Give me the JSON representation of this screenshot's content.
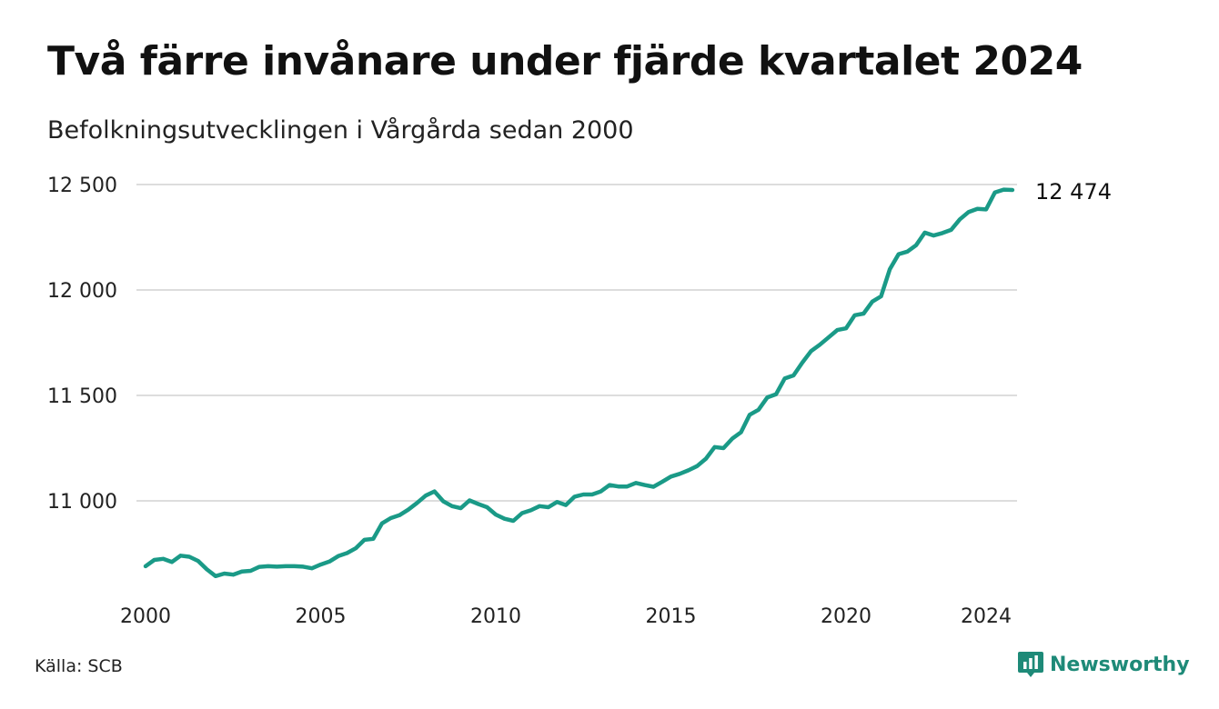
{
  "header": {
    "title": "Två färre invånare under fjärde kvartalet 2024",
    "subtitle": "Befolkningsutvecklingen i Vårgårda sedan 2000"
  },
  "footer": {
    "source": "Källa: SCB",
    "brand": "Newsworthy"
  },
  "colors": {
    "line": "#1a9a87",
    "brand": "#1e8a78",
    "grid": "#dddddd"
  },
  "chart_data": {
    "type": "line",
    "title": "Två färre invånare under fjärde kvartalet 2024",
    "subtitle": "Befolkningsutvecklingen i Vårgårda sedan 2000",
    "xlabel": "",
    "ylabel": "",
    "x_ticks": [
      2000,
      2005,
      2010,
      2015,
      2020,
      2024
    ],
    "y_ticks": [
      11000,
      11500,
      12000,
      12500
    ],
    "y_tick_labels": [
      "11 000",
      "11 500",
      "12 000",
      "12 500"
    ],
    "xlim": [
      2000,
      2024.75
    ],
    "ylim": [
      10620,
      12520
    ],
    "grid": "horizontal",
    "end_label": "12 474",
    "series": [
      {
        "values": [
          [
            2000.0,
            10690
          ],
          [
            2000.25,
            10720
          ],
          [
            2000.5,
            10725
          ],
          [
            2000.75,
            10710
          ],
          [
            2001.0,
            10740
          ],
          [
            2001.25,
            10735
          ],
          [
            2001.5,
            10715
          ],
          [
            2001.75,
            10675
          ],
          [
            2002.0,
            10643
          ],
          [
            2002.25,
            10655
          ],
          [
            2002.5,
            10650
          ],
          [
            2002.75,
            10665
          ],
          [
            2003.0,
            10668
          ],
          [
            2003.25,
            10687
          ],
          [
            2003.5,
            10690
          ],
          [
            2003.75,
            10688
          ],
          [
            2004.0,
            10690
          ],
          [
            2004.25,
            10690
          ],
          [
            2004.5,
            10688
          ],
          [
            2004.75,
            10680
          ],
          [
            2005.0,
            10698
          ],
          [
            2005.25,
            10712
          ],
          [
            2005.5,
            10738
          ],
          [
            2005.75,
            10752
          ],
          [
            2006.0,
            10775
          ],
          [
            2006.25,
            10815
          ],
          [
            2006.5,
            10820
          ],
          [
            2006.75,
            10893
          ],
          [
            2007.0,
            10918
          ],
          [
            2007.25,
            10932
          ],
          [
            2007.5,
            10958
          ],
          [
            2007.75,
            10990
          ],
          [
            2008.0,
            11025
          ],
          [
            2008.25,
            11045
          ],
          [
            2008.5,
            10998
          ],
          [
            2008.75,
            10975
          ],
          [
            2009.0,
            10965
          ],
          [
            2009.25,
            11002
          ],
          [
            2009.5,
            10985
          ],
          [
            2009.75,
            10970
          ],
          [
            2010.0,
            10935
          ],
          [
            2010.25,
            10915
          ],
          [
            2010.5,
            10905
          ],
          [
            2010.75,
            10942
          ],
          [
            2011.0,
            10955
          ],
          [
            2011.25,
            10975
          ],
          [
            2011.5,
            10970
          ],
          [
            2011.75,
            10995
          ],
          [
            2012.0,
            10980
          ],
          [
            2012.25,
            11020
          ],
          [
            2012.5,
            11030
          ],
          [
            2012.75,
            11030
          ],
          [
            2013.0,
            11045
          ],
          [
            2013.25,
            11075
          ],
          [
            2013.5,
            11068
          ],
          [
            2013.75,
            11068
          ],
          [
            2014.0,
            11085
          ],
          [
            2014.25,
            11075
          ],
          [
            2014.5,
            11067
          ],
          [
            2014.75,
            11090
          ],
          [
            2015.0,
            11115
          ],
          [
            2015.25,
            11128
          ],
          [
            2015.5,
            11145
          ],
          [
            2015.75,
            11165
          ],
          [
            2016.0,
            11200
          ],
          [
            2016.25,
            11255
          ],
          [
            2016.5,
            11250
          ],
          [
            2016.75,
            11295
          ],
          [
            2017.0,
            11325
          ],
          [
            2017.25,
            11408
          ],
          [
            2017.5,
            11432
          ],
          [
            2017.75,
            11490
          ],
          [
            2018.0,
            11505
          ],
          [
            2018.25,
            11580
          ],
          [
            2018.5,
            11595
          ],
          [
            2018.75,
            11655
          ],
          [
            2019.0,
            11710
          ],
          [
            2019.25,
            11740
          ],
          [
            2019.5,
            11775
          ],
          [
            2019.75,
            11810
          ],
          [
            2020.0,
            11818
          ],
          [
            2020.25,
            11880
          ],
          [
            2020.5,
            11888
          ],
          [
            2020.75,
            11945
          ],
          [
            2021.0,
            11970
          ],
          [
            2021.25,
            12098
          ],
          [
            2021.5,
            12170
          ],
          [
            2021.75,
            12182
          ],
          [
            2022.0,
            12212
          ],
          [
            2022.25,
            12272
          ],
          [
            2022.5,
            12258
          ],
          [
            2022.75,
            12270
          ],
          [
            2023.0,
            12285
          ],
          [
            2023.25,
            12335
          ],
          [
            2023.5,
            12370
          ],
          [
            2023.75,
            12385
          ],
          [
            2024.0,
            12382
          ],
          [
            2024.25,
            12462
          ],
          [
            2024.5,
            12476
          ],
          [
            2024.75,
            12474
          ]
        ]
      }
    ]
  }
}
